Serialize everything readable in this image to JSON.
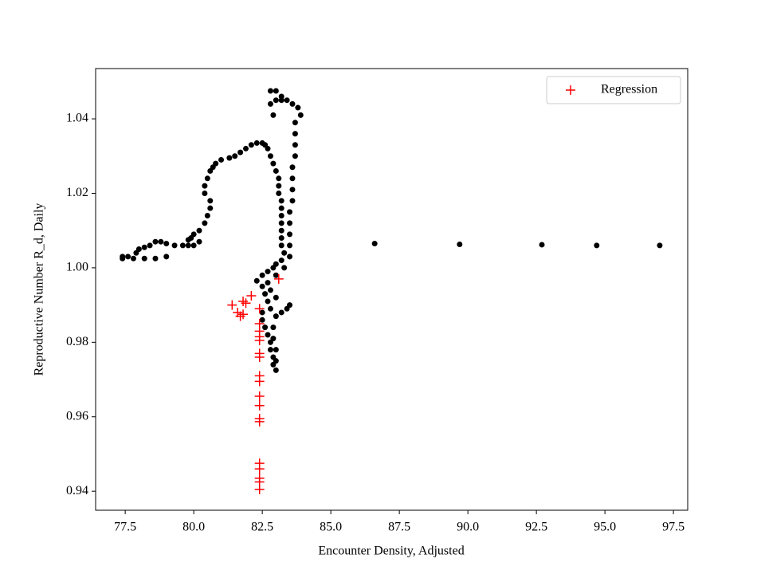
{
  "chart_data": {
    "type": "scatter",
    "xlabel": "Encounter Density, Adjusted",
    "ylabel": "Reproductive Number R_d, Daily",
    "xlim": [
      76.42,
      98.02
    ],
    "ylim": [
      0.9349,
      1.0535
    ],
    "xticks": [
      77.5,
      {
        "value": 80,
        "label": "80.0"
      },
      82.5,
      {
        "value": 85,
        "label": "85.0"
      },
      87.5,
      {
        "value": 90,
        "label": "90.0"
      },
      92.5,
      {
        "value": 95,
        "label": "95.0"
      },
      97.5
    ],
    "yticks": [
      0.94,
      0.96,
      0.98,
      {
        "value": 1.0,
        "label": "1.00"
      },
      1.02,
      1.04
    ],
    "grid": false,
    "legend": "upper right",
    "series": [
      {
        "color": "#000000",
        "marker": "o",
        "x": [
          77.4,
          77.4,
          77.6,
          77.8,
          77.9,
          78.0,
          78.2,
          78.4,
          78.6,
          78.8,
          79.0,
          78.2,
          78.6,
          79.0,
          79.3,
          79.6,
          79.8,
          80.0,
          80.2,
          79.8,
          79.9,
          80.0,
          80.2,
          80.4,
          80.5,
          80.6,
          80.6,
          80.4,
          80.4,
          80.5,
          80.6,
          80.7,
          80.8,
          81.0,
          81.3,
          81.5,
          81.7,
          81.9,
          82.1,
          82.3,
          82.5,
          82.6,
          82.7,
          82.8,
          82.9,
          83.0,
          83.1,
          83.1,
          83.1,
          83.2,
          83.2,
          83.2,
          83.2,
          83.2,
          83.2,
          83.2,
          83.3,
          83.2,
          83.0,
          82.9,
          82.7,
          82.5,
          82.3,
          82.5,
          82.6,
          82.7,
          82.8,
          82.5,
          82.5,
          82.6,
          82.7,
          82.8,
          82.8,
          82.9,
          82.9,
          83.0,
          83.0,
          83.0,
          82.9,
          82.9,
          83.0,
          83.2,
          83.4,
          83.5,
          83.0,
          82.8,
          82.7,
          83.0,
          83.3,
          83.5,
          83.5,
          83.5,
          83.5,
          83.5,
          83.6,
          83.6,
          83.6,
          83.6,
          83.7,
          83.7,
          83.7,
          83.7,
          83.9,
          83.8,
          83.6,
          83.4,
          83.2,
          83.0,
          82.8,
          82.8,
          82.9,
          83.0,
          83.2,
          86.6,
          89.7,
          92.7,
          94.7,
          97.0
        ],
        "values": [
          1.0025,
          1.003,
          1.003,
          1.0025,
          1.004,
          1.005,
          1.0055,
          1.006,
          1.007,
          1.007,
          1.0065,
          1.0025,
          1.0025,
          1.003,
          1.006,
          1.006,
          1.006,
          1.006,
          1.007,
          1.0075,
          1.008,
          1.009,
          1.01,
          1.012,
          1.014,
          1.016,
          1.018,
          1.02,
          1.022,
          1.024,
          1.026,
          1.027,
          1.028,
          1.029,
          1.0295,
          1.03,
          1.031,
          1.032,
          1.033,
          1.0335,
          1.0335,
          1.033,
          1.032,
          1.03,
          1.028,
          1.026,
          1.024,
          1.022,
          1.02,
          1.018,
          1.016,
          1.014,
          1.012,
          1.01,
          1.008,
          1.006,
          1.004,
          1.002,
          1.001,
          1.0,
          0.999,
          0.998,
          0.9965,
          0.995,
          0.993,
          0.991,
          0.989,
          0.988,
          0.986,
          0.984,
          0.982,
          0.98,
          0.978,
          0.976,
          0.974,
          0.9725,
          0.975,
          0.978,
          0.981,
          0.984,
          0.987,
          0.988,
          0.989,
          0.99,
          0.992,
          0.994,
          0.996,
          0.998,
          1.0,
          1.003,
          1.006,
          1.009,
          1.012,
          1.015,
          1.018,
          1.021,
          1.024,
          1.027,
          1.03,
          1.033,
          1.036,
          1.039,
          1.041,
          1.043,
          1.044,
          1.045,
          1.046,
          1.0475,
          1.0475,
          1.044,
          1.041,
          1.045,
          1.045,
          1.0065,
          1.0063,
          1.0062,
          1.006,
          1.006
        ]
      },
      {
        "name": "Regression",
        "color": "#ff0000",
        "marker": "+",
        "x": [
          81.4,
          81.6,
          81.7,
          81.8,
          81.8,
          81.9,
          82.1,
          83.1,
          82.4,
          82.4,
          82.4,
          82.4,
          82.4,
          82.4,
          82.4,
          82.4,
          82.4,
          82.4,
          82.4,
          82.4,
          82.4,
          82.4,
          82.4,
          82.4,
          82.4,
          82.4
        ],
        "values": [
          0.99,
          0.988,
          0.987,
          0.9875,
          0.991,
          0.9905,
          0.9925,
          0.997,
          0.989,
          0.985,
          0.983,
          0.9805,
          0.9815,
          0.977,
          0.976,
          0.971,
          0.9695,
          0.9655,
          0.963,
          0.9595,
          0.9587,
          0.9475,
          0.946,
          0.9435,
          0.9425,
          0.9405
        ]
      }
    ]
  }
}
